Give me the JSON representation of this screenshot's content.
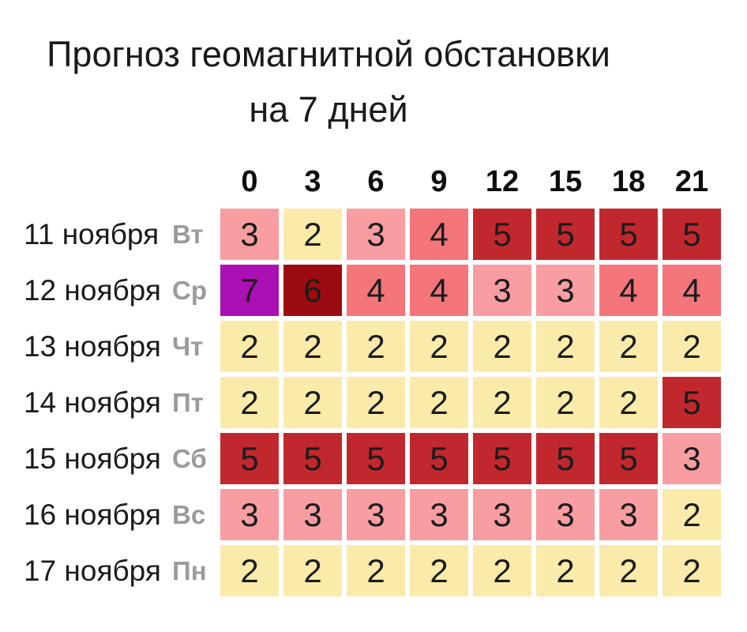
{
  "title": {
    "line1": "Прогноз геомагнитной обстановки",
    "line2": "на 7 дней"
  },
  "chart_data": {
    "type": "heatmap",
    "title": "Прогноз геомагнитной обстановки на 7 дней",
    "x": [
      "0",
      "3",
      "6",
      "9",
      "12",
      "15",
      "18",
      "21"
    ],
    "rows": [
      {
        "date": "11 ноября",
        "day": "Вт",
        "values": [
          3,
          2,
          3,
          4,
          5,
          5,
          5,
          5
        ]
      },
      {
        "date": "12 ноября",
        "day": "Ср",
        "values": [
          7,
          6,
          4,
          4,
          3,
          3,
          4,
          4
        ]
      },
      {
        "date": "13 ноября",
        "day": "Чт",
        "values": [
          2,
          2,
          2,
          2,
          2,
          2,
          2,
          2
        ]
      },
      {
        "date": "14 ноября",
        "day": "Пт",
        "values": [
          2,
          2,
          2,
          2,
          2,
          2,
          2,
          5
        ]
      },
      {
        "date": "15 ноября",
        "day": "Сб",
        "values": [
          5,
          5,
          5,
          5,
          5,
          5,
          5,
          3
        ]
      },
      {
        "date": "16 ноября",
        "day": "Вс",
        "values": [
          3,
          3,
          3,
          3,
          3,
          3,
          3,
          2
        ]
      },
      {
        "date": "17 ноября",
        "day": "Пн",
        "values": [
          2,
          2,
          2,
          2,
          2,
          2,
          2,
          2
        ]
      }
    ],
    "color_scale": {
      "2": "#FAEBAB",
      "3": "#F89EA2",
      "4": "#F4767B",
      "5": "#C1282E",
      "6": "#9C0B10",
      "7": "#AB10B5"
    },
    "colors": {
      "header_text": "#0d0d0d",
      "date_text": "#1b1b1b",
      "day_text": "#9b9b9b",
      "cell_text": "#1c1c1c",
      "background": "#ffffff"
    },
    "legend_position": "none",
    "grid": false
  }
}
